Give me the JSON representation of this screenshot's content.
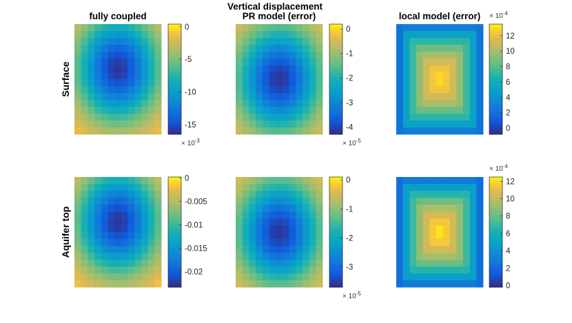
{
  "figure_title": "Vertical displacement",
  "chart_data": [
    {
      "type": "heatmap",
      "row": "Surface",
      "column": "fully coupled",
      "title": "fully coupled",
      "ylabel": "Surface",
      "grid": [
        13,
        16
      ],
      "pattern": "bowl",
      "peak": [
        6,
        6
      ],
      "clim": [
        -0.0165,
        0.0004
      ],
      "colorbar": {
        "ticks": [
          0,
          -0.005,
          -0.01,
          -0.015
        ],
        "tick_labels": [
          "0",
          "-5",
          "-10",
          "-15"
        ],
        "exponent": "× 10-3",
        "exp_base": "× 10",
        "exp_power": "-3"
      }
    },
    {
      "type": "heatmap",
      "row": "Surface",
      "column": "PR model (error)",
      "title": "PR model (error)",
      "grid": [
        13,
        16
      ],
      "pattern": "bowl",
      "peak": [
        6,
        7.5
      ],
      "clim": [
        -4.3e-05,
        2e-06
      ],
      "colorbar": {
        "ticks": [
          0,
          -1e-05,
          -2e-05,
          -3e-05,
          -4e-05
        ],
        "tick_labels": [
          "0",
          "-1",
          "-2",
          "-3",
          "-4"
        ],
        "exponent": "× 10-5",
        "exp_base": "× 10",
        "exp_power": "-5"
      }
    },
    {
      "type": "heatmap",
      "row": "Surface",
      "column": "local model (error)",
      "title": "local model (error)",
      "grid": [
        13,
        16
      ],
      "pattern": "dome",
      "peak": [
        6,
        7.5
      ],
      "clim": [
        -8e-05,
        0.00135
      ],
      "colorbar": {
        "ticks": [
          0,
          0.0002,
          0.0004,
          0.0006,
          0.0008,
          0.001,
          0.0012
        ],
        "tick_labels": [
          "0",
          "2",
          "4",
          "6",
          "8",
          "10",
          "12"
        ],
        "exponent": "× 10-4",
        "exp_base": "× 10",
        "exp_power": "-4"
      }
    },
    {
      "type": "heatmap",
      "row": "Aquifer top",
      "column": "fully coupled",
      "title": "",
      "ylabel": "Aquifer top",
      "grid": [
        13,
        16
      ],
      "pattern": "bowl",
      "peak": [
        6,
        6
      ],
      "clim": [
        -0.0233,
        0.0002
      ],
      "colorbar": {
        "ticks": [
          0,
          -0.005,
          -0.01,
          -0.015,
          -0.02
        ],
        "tick_labels": [
          "0",
          "-0.005",
          "-0.01",
          "-0.015",
          "-0.02"
        ],
        "exponent": "",
        "exp_base": "",
        "exp_power": ""
      }
    },
    {
      "type": "heatmap",
      "row": "Aquifer top",
      "column": "PR model (error)",
      "title": "",
      "grid": [
        13,
        16
      ],
      "pattern": "bowl",
      "peak": [
        6,
        7.5
      ],
      "clim": [
        -3.7e-05,
        1e-06
      ],
      "colorbar": {
        "ticks": [
          0,
          -1e-05,
          -2e-05,
          -3e-05
        ],
        "tick_labels": [
          "0",
          "-1",
          "-2",
          "-3"
        ],
        "exponent": "× 10-5",
        "exp_base": "× 10",
        "exp_power": "-5"
      }
    },
    {
      "type": "heatmap",
      "row": "Aquifer top",
      "column": "local model (error)",
      "title": "",
      "grid": [
        13,
        16
      ],
      "pattern": "dome",
      "peak": [
        6,
        7.5
      ],
      "clim": [
        -2e-05,
        0.00125
      ],
      "colorbar": {
        "ticks": [
          0,
          0.0002,
          0.0004,
          0.0006,
          0.0008,
          0.001,
          0.0012
        ],
        "tick_labels": [
          "0",
          "2",
          "4",
          "6",
          "8",
          "10",
          "12"
        ],
        "exponent": "× 10-4",
        "exp_base": "× 10",
        "exp_power": "-4"
      }
    }
  ]
}
